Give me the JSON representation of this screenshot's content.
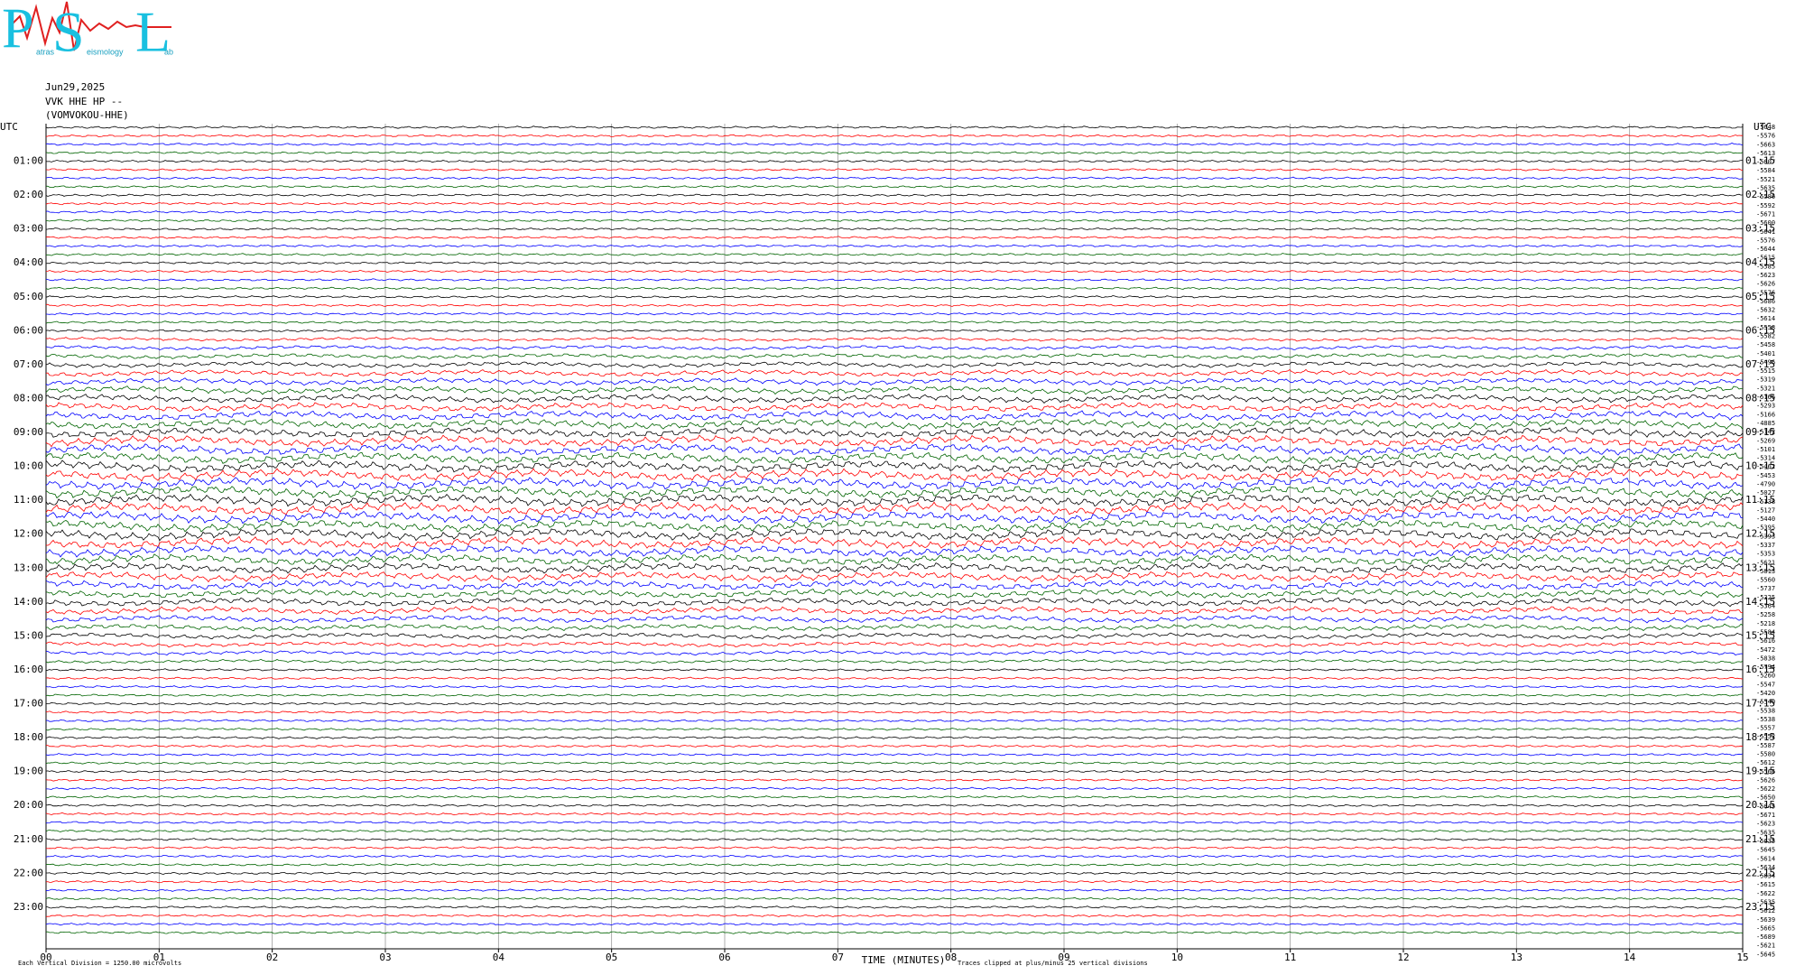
{
  "header": {
    "logo": {
      "letters": [
        "P",
        "S",
        "L"
      ],
      "words": [
        "atras",
        "eismology",
        "ab"
      ]
    },
    "date": "Jun29,2025",
    "station": "VVK HHE HP --",
    "site": "(VOMVOKOU-HHE)"
  },
  "left_axis": {
    "title": "UTC",
    "labels": [
      "01:00",
      "02:00",
      "03:00",
      "04:00",
      "05:00",
      "06:00",
      "07:00",
      "08:00",
      "09:00",
      "10:00",
      "11:00",
      "12:00",
      "13:00",
      "14:00",
      "15:00",
      "16:00",
      "17:00",
      "18:00",
      "19:00",
      "20:00",
      "21:00",
      "22:00",
      "23:00"
    ]
  },
  "right_axis": {
    "title": "UTC",
    "labels": [
      "01:15",
      "02:15",
      "03:15",
      "04:15",
      "05:15",
      "06:15",
      "07:15",
      "08:15",
      "09:15",
      "10:15",
      "11:15",
      "12:15",
      "13:15",
      "14:15",
      "15:15",
      "16:15",
      "17:15",
      "18:15",
      "19:15",
      "20:15",
      "21:15",
      "22:15",
      "23:15"
    ]
  },
  "trace_offsets": [
    -5648,
    -5576,
    -5663,
    -5613,
    -5607,
    -5584,
    -5521,
    -5635,
    -5586,
    -5592,
    -5671,
    -5600,
    -5641,
    -5576,
    -5644,
    -5615,
    -5585,
    -5623,
    -5626,
    -5576,
    -5686,
    -5632,
    -5614,
    -5558,
    -5582,
    -5458,
    -5401,
    -5496,
    -5515,
    -5319,
    -5321,
    -5166,
    -5293,
    -5166,
    -4885,
    -5142,
    -5269,
    -5101,
    -5314,
    -5462,
    -5453,
    -4790,
    -5027,
    -5138,
    -5127,
    -5440,
    -5395,
    -5393,
    -5337,
    -5353,
    -5621,
    -5813,
    -5560,
    -5737,
    -5325,
    -5364,
    -5258,
    -5218,
    -5584,
    -5616,
    -5472,
    -5838,
    -5794,
    -5260,
    -5547,
    -5420,
    -5540,
    -5538,
    -5538,
    -5557,
    -5552,
    -5587,
    -5580,
    -5612,
    -5566,
    -5626,
    -5622,
    -5650,
    -5645,
    -5671,
    -5623,
    -5635,
    -5635,
    -5645,
    -5614,
    -5634,
    -5634,
    -5615,
    -5622,
    -5635,
    -5612,
    -5639,
    -5665,
    -5689,
    -5621,
    -5645
  ],
  "trace_colors": [
    "#000000",
    "#ff0000",
    "#0000ff",
    "#006400"
  ],
  "x_axis": {
    "title": "TIME (MINUTES)",
    "ticks": [
      "00",
      "01",
      "02",
      "03",
      "04",
      "05",
      "06",
      "07",
      "08",
      "09",
      "10",
      "11",
      "12",
      "13",
      "14",
      "15"
    ]
  },
  "footer": {
    "scale": "Each Vertical Division = 1250.00 microvolts",
    "clip": "Traces clipped at plus/minus 25 vertical divisions"
  }
}
